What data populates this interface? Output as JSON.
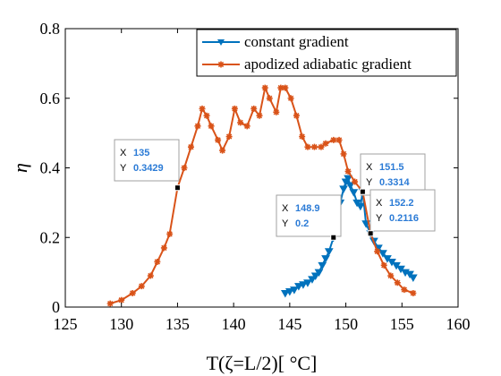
{
  "chart_data": {
    "type": "line",
    "xlabel": "T(ζ=L/2)[ °C]",
    "ylabel": "η",
    "xlim": [
      125,
      160
    ],
    "ylim": [
      0,
      0.8
    ],
    "xticks": [
      125,
      130,
      135,
      140,
      145,
      150,
      155,
      160
    ],
    "yticks": [
      0,
      0.2,
      0.4,
      0.6,
      0.8
    ],
    "grid": false,
    "legend_position": "top-right",
    "series": [
      {
        "name": "constant gradient",
        "color": "#0072BD",
        "marker": "triangle-down",
        "x": [
          144.6,
          145.0,
          145.4,
          145.8,
          146.2,
          146.6,
          147.0,
          147.3,
          147.6,
          147.9,
          148.2,
          148.5,
          148.9,
          149.2,
          149.5,
          149.8,
          150.0,
          150.2,
          150.4,
          150.7,
          151.0,
          151.3,
          151.5,
          151.8,
          152.2,
          152.5,
          152.9,
          153.3,
          153.7,
          154.1,
          154.5,
          154.9,
          155.3,
          155.7,
          156.0
        ],
        "y": [
          0.04,
          0.045,
          0.05,
          0.06,
          0.065,
          0.07,
          0.08,
          0.09,
          0.1,
          0.12,
          0.14,
          0.16,
          0.2,
          0.26,
          0.3,
          0.34,
          0.36,
          0.37,
          0.35,
          0.33,
          0.3,
          0.29,
          0.3314,
          0.24,
          0.2116,
          0.19,
          0.17,
          0.155,
          0.14,
          0.13,
          0.12,
          0.11,
          0.1,
          0.095,
          0.085
        ]
      },
      {
        "name": "apodized adiabatic gradient",
        "color": "#D95319",
        "marker": "asterisk",
        "x": [
          129.0,
          130.0,
          131.0,
          131.8,
          132.6,
          133.2,
          133.8,
          134.3,
          135.0,
          135.6,
          136.2,
          136.8,
          137.2,
          137.6,
          138.0,
          138.6,
          139.0,
          139.6,
          140.1,
          140.6,
          141.2,
          141.8,
          142.3,
          142.8,
          143.2,
          143.8,
          144.2,
          144.6,
          145.1,
          145.6,
          146.1,
          146.6,
          147.2,
          147.8,
          148.2,
          148.9,
          149.4,
          149.8,
          150.2,
          150.8,
          151.5,
          152.2,
          152.8,
          153.4,
          154.0,
          154.6,
          155.2,
          156.0
        ],
        "y": [
          0.01,
          0.02,
          0.04,
          0.06,
          0.09,
          0.13,
          0.17,
          0.21,
          0.3429,
          0.4,
          0.46,
          0.52,
          0.57,
          0.55,
          0.52,
          0.48,
          0.45,
          0.49,
          0.57,
          0.53,
          0.52,
          0.57,
          0.55,
          0.63,
          0.6,
          0.56,
          0.63,
          0.63,
          0.6,
          0.55,
          0.49,
          0.46,
          0.46,
          0.46,
          0.47,
          0.48,
          0.48,
          0.44,
          0.39,
          0.36,
          0.3314,
          0.2116,
          0.16,
          0.12,
          0.09,
          0.07,
          0.05,
          0.04
        ]
      }
    ],
    "datatips": [
      {
        "x_label": "X",
        "x_value": "135",
        "y_label": "Y",
        "y_value": "0.3429",
        "x": 135,
        "y": 0.3429
      },
      {
        "x_label": "X",
        "x_value": "148.9",
        "y_label": "Y",
        "y_value": "0.2",
        "x": 148.9,
        "y": 0.2
      },
      {
        "x_label": "X",
        "x_value": "151.5",
        "y_label": "Y",
        "y_value": "0.3314",
        "x": 151.5,
        "y": 0.3314
      },
      {
        "x_label": "X",
        "x_value": "152.2",
        "y_label": "Y",
        "y_value": "0.2116",
        "x": 152.2,
        "y": 0.2116
      }
    ]
  }
}
